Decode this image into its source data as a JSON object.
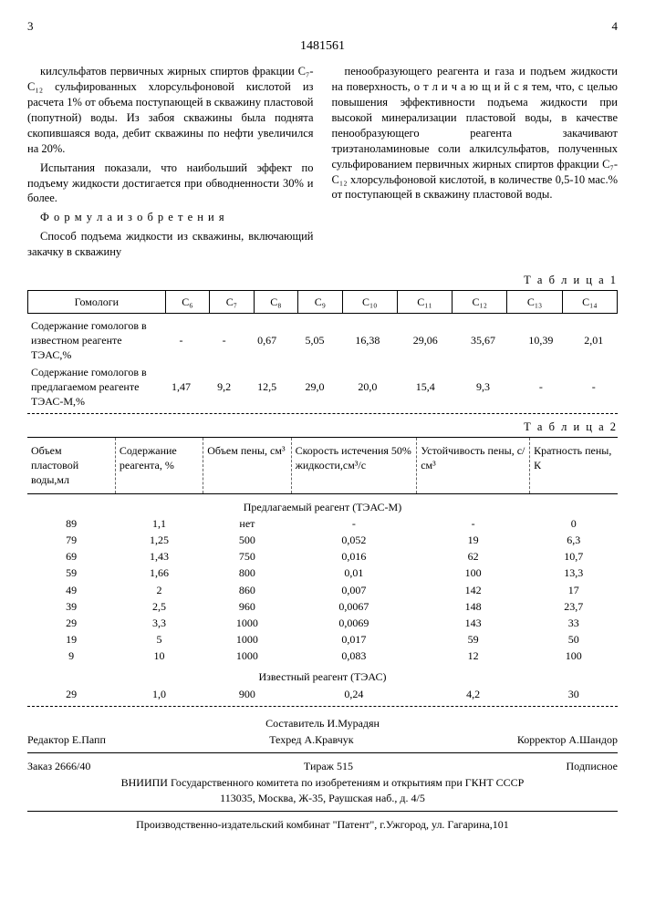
{
  "page_left": "3",
  "doc_number": "1481561",
  "page_right": "4",
  "left_col": {
    "p1": "килсульфатов первичных жирных спиртов фракции C₇-C₁₂ сульфированных хлорсульфоновой кислотой из расчета 1% от объема поступающей в скважину пластовой (попутной) воды. Из забоя скважины была поднята скопившаяся вода, дебит скважины по нефти увеличился на 20%.",
    "p2": "Испытания показали, что наибольший эффект по подъему жидкости достигается при обводненности 30% и более.",
    "p3_title": "Ф о р м у л а  и з о б р е т е н и я",
    "p3": "Способ подъема жидкости из скважины, включающий закачку в скважину"
  },
  "right_col": {
    "p1": "пенообразующего реагента и газа и подъем жидкости на поверхность, о т л и ч а ю щ и й с я тем, что, с целью повышения эффективности подъема жидкости при высокой минерализации пластовой воды, в качестве пенообразующего реагента закачивают триэтаноламиновые соли алкилсульфатов, полученных сульфированием первичных жирных спиртов фракции C₇-C₁₂ хлорсульфоновой кислотой, в количестве 0,5-10 мас.% от поступающей в скважину пластовой воды."
  },
  "table1": {
    "label": "Т а б л и ц а  1",
    "headers": [
      "Гомологи",
      "C₆",
      "C₇",
      "C₈",
      "C₉",
      "C₁₀",
      "C₁₁",
      "C₁₂",
      "C₁₃",
      "C₁₄"
    ],
    "row1_label": "Содержание гомологов в известном реагенте ТЭАС,%",
    "row1": [
      "-",
      "-",
      "0,67",
      "5,05",
      "16,38",
      "29,06",
      "35,67",
      "10,39",
      "2,01"
    ],
    "row2_label": "Содержание гомологов в предлагаемом реагенте ТЭАС-М,%",
    "row2": [
      "1,47",
      "9,2",
      "12,5",
      "29,0",
      "20,0",
      "15,4",
      "9,3",
      "-",
      "-"
    ]
  },
  "table2": {
    "label": "Т а б л и ц а  2",
    "headers": [
      "Объем пластовой воды,мл",
      "Содержание реагента, %",
      "Объем пены, см³",
      "Скорость истечения 50% жидкости,см³/с",
      "Устойчивость пены, с/см³",
      "Кратность пены, К"
    ],
    "section1": "Предлагаемый реагент (ТЭАС-М)",
    "rows1": [
      [
        "89",
        "1,1",
        "нет",
        "-",
        "-",
        "0"
      ],
      [
        "79",
        "1,25",
        "500",
        "0,052",
        "19",
        "6,3"
      ],
      [
        "69",
        "1,43",
        "750",
        "0,016",
        "62",
        "10,7"
      ],
      [
        "59",
        "1,66",
        "800",
        "0,01",
        "100",
        "13,3"
      ],
      [
        "49",
        "2",
        "860",
        "0,007",
        "142",
        "17"
      ],
      [
        "39",
        "2,5",
        "960",
        "0,0067",
        "148",
        "23,7"
      ],
      [
        "29",
        "3,3",
        "1000",
        "0,0069",
        "143",
        "33"
      ],
      [
        "19",
        "5",
        "1000",
        "0,017",
        "59",
        "50"
      ],
      [
        "9",
        "10",
        "1000",
        "0,083",
        "12",
        "100"
      ]
    ],
    "section2": "Известный реагент (ТЭАС)",
    "rows2": [
      [
        "29",
        "1,0",
        "900",
        "0,24",
        "4,2",
        "30"
      ]
    ]
  },
  "footer": {
    "compiler": "Составитель И.Мурадян",
    "editor": "Редактор Е.Папп",
    "tech": "Техред А.Кравчук",
    "corrector": "Корректор А.Шандор",
    "order": "Заказ 2666/40",
    "tirazh": "Тираж 515",
    "sub": "Подписное",
    "org": "ВНИИПИ Государственного комитета по изобретениям и открытиям при ГКНТ СССР",
    "addr": "113035, Москва, Ж-35, Раушская наб., д. 4/5",
    "printer": "Производственно-издательский комбинат \"Патент\", г.Ужгород, ул. Гагарина,101"
  }
}
